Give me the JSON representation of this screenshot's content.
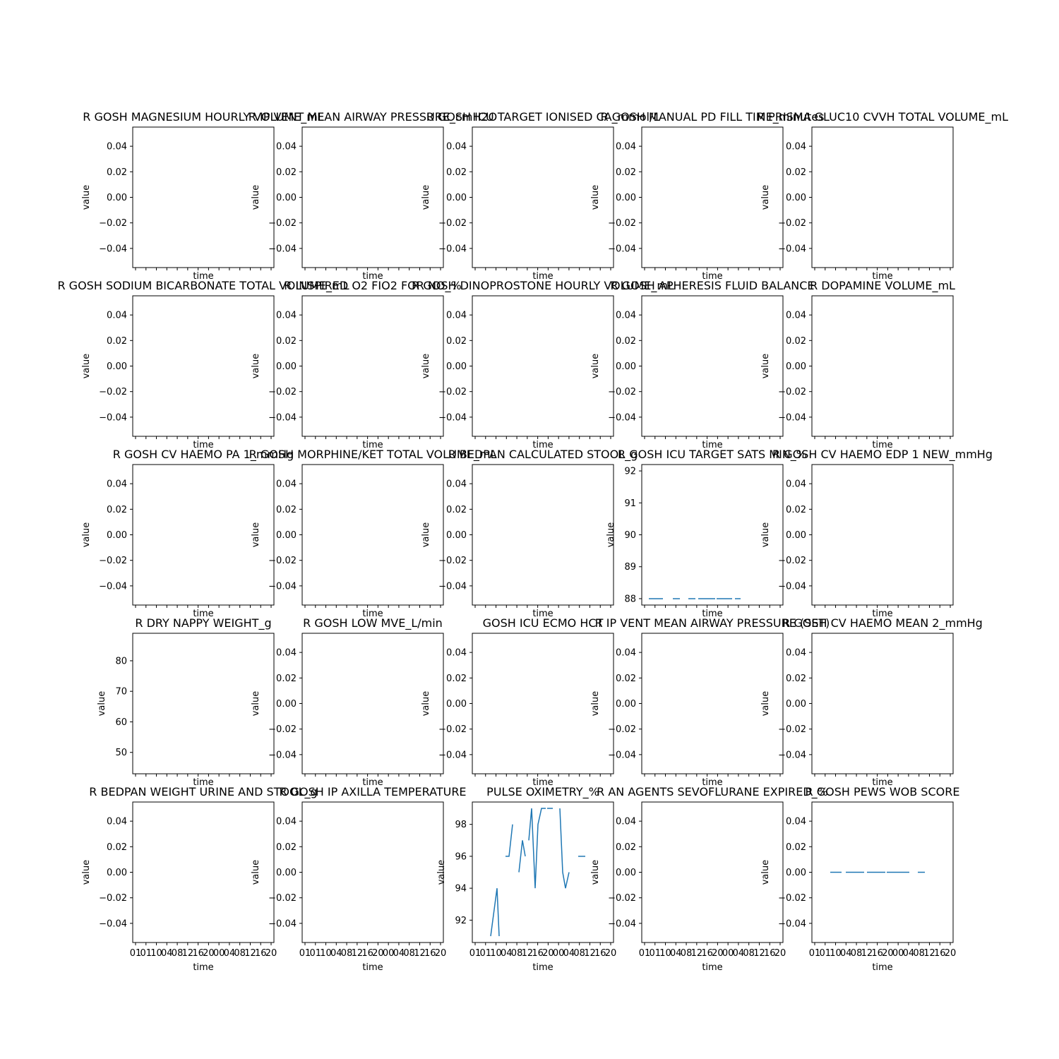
{
  "figure": {
    "line_color": "#1f77b4",
    "background": "#ffffff"
  },
  "chart_data": [
    {
      "type": "line",
      "title": "R GOSH MAGNESIUM HOURLY VOLUME_mL",
      "xlabel": "time",
      "ylabel": "value",
      "yticks": [
        "0.04",
        "0.02",
        "0.00",
        "−0.02",
        "−0.04"
      ],
      "ylim": [
        -0.055,
        0.055
      ],
      "xticks": [],
      "series": []
    },
    {
      "type": "line",
      "title": "R IP VENT MEAN AIRWAY PRESSURE_cmH2O",
      "xlabel": "time",
      "ylabel": "value",
      "yticks": [
        "0.04",
        "0.02",
        "0.00",
        "−0.02",
        "−0.04"
      ],
      "ylim": [
        -0.055,
        0.055
      ],
      "xticks": [],
      "series": []
    },
    {
      "type": "line",
      "title": "R GOSH ICU TARGET IONISED CA_mmol/L",
      "xlabel": "time",
      "ylabel": "value",
      "yticks": [
        "0.04",
        "0.02",
        "0.00",
        "−0.02",
        "−0.04"
      ],
      "ylim": [
        -0.055,
        0.055
      ],
      "xticks": [],
      "series": []
    },
    {
      "type": "line",
      "title": "R GOSH MANUAL PD FILL TIME_minutes",
      "xlabel": "time",
      "ylabel": "value",
      "yticks": [
        "0.04",
        "0.02",
        "0.00",
        "−0.02",
        "−0.04"
      ],
      "ylim": [
        -0.055,
        0.055
      ],
      "xticks": [],
      "series": []
    },
    {
      "type": "line",
      "title": "R PRISMA GLUC10 CVVH TOTAL VOLUME_mL",
      "xlabel": "time",
      "ylabel": "value",
      "yticks": [
        "0.04",
        "0.02",
        "0.00",
        "−0.02",
        "−0.04"
      ],
      "ylim": [
        -0.055,
        0.055
      ],
      "xticks": [],
      "series": []
    },
    {
      "type": "line",
      "title": "R GOSH SODIUM BICARBONATE TOTAL VOLUME_mL",
      "xlabel": "time",
      "ylabel": "value",
      "yticks": [
        "0.04",
        "0.02",
        "0.00",
        "−0.02",
        "−0.04"
      ],
      "ylim": [
        -0.055,
        0.055
      ],
      "xticks": [],
      "series": []
    },
    {
      "type": "line",
      "title": "R INSPIRED O2 FIO2 FOR NO_%",
      "xlabel": "time",
      "ylabel": "value",
      "yticks": [
        "0.04",
        "0.02",
        "0.00",
        "−0.02",
        "−0.04"
      ],
      "ylim": [
        -0.055,
        0.055
      ],
      "xticks": [],
      "series": []
    },
    {
      "type": "line",
      "title": "R GOSH DINOPROSTONE HOURLY VOLUME_mL",
      "xlabel": "time",
      "ylabel": "value",
      "yticks": [
        "0.04",
        "0.02",
        "0.00",
        "−0.02",
        "−0.04"
      ],
      "ylim": [
        -0.055,
        0.055
      ],
      "xticks": [],
      "series": []
    },
    {
      "type": "line",
      "title": "R GOSH APHERESIS FLUID BALANCE",
      "xlabel": "time",
      "ylabel": "value",
      "yticks": [
        "0.04",
        "0.02",
        "0.00",
        "−0.02",
        "−0.04"
      ],
      "ylim": [
        -0.055,
        0.055
      ],
      "xticks": [],
      "series": []
    },
    {
      "type": "line",
      "title": "R DOPAMINE VOLUME_mL",
      "xlabel": "time",
      "ylabel": "value",
      "yticks": [
        "0.04",
        "0.02",
        "0.00",
        "−0.02",
        "−0.04"
      ],
      "ylim": [
        -0.055,
        0.055
      ],
      "xticks": [],
      "series": []
    },
    {
      "type": "line",
      "title": "R GOSH CV HAEMO PA 1_mmHg",
      "xlabel": "time",
      "ylabel": "value",
      "yticks": [
        "0.04",
        "0.02",
        "0.00",
        "−0.02",
        "−0.04"
      ],
      "ylim": [
        -0.055,
        0.055
      ],
      "xticks": [],
      "series": []
    },
    {
      "type": "line",
      "title": "R GOSH MORPHINE/KET TOTAL VOLUME_mL",
      "xlabel": "time",
      "ylabel": "value",
      "yticks": [
        "0.04",
        "0.02",
        "0.00",
        "−0.02",
        "−0.04"
      ],
      "ylim": [
        -0.055,
        0.055
      ],
      "xticks": [],
      "series": []
    },
    {
      "type": "line",
      "title": "R BEDPAN CALCULATED STOOL_g",
      "xlabel": "time",
      "ylabel": "value",
      "yticks": [
        "0.04",
        "0.02",
        "0.00",
        "−0.02",
        "−0.04"
      ],
      "ylim": [
        -0.055,
        0.055
      ],
      "xticks": [],
      "series": []
    },
    {
      "type": "line",
      "title": "R GOSH ICU TARGET SATS MIN_%",
      "xlabel": "time",
      "ylabel": "value",
      "yticks": [
        "92",
        "91",
        "90",
        "89",
        "88"
      ],
      "ylim": [
        87.8,
        92.2
      ],
      "xticks": [],
      "series": [
        {
          "segments": [
            [
              [
                0.05,
                88
              ],
              [
                0.15,
                88
              ]
            ],
            [
              [
                0.22,
                88
              ],
              [
                0.27,
                88
              ]
            ],
            [
              [
                0.33,
                88
              ],
              [
                0.38,
                88
              ]
            ],
            [
              [
                0.4,
                88
              ],
              [
                0.52,
                88
              ]
            ],
            [
              [
                0.53,
                88
              ],
              [
                0.64,
                88
              ]
            ],
            [
              [
                0.66,
                88
              ],
              [
                0.7,
                88
              ]
            ]
          ]
        }
      ]
    },
    {
      "type": "line",
      "title": "R GOSH CV HAEMO EDP 1 NEW_mmHg",
      "xlabel": "time",
      "ylabel": "value",
      "yticks": [
        "0.04",
        "0.02",
        "0.00",
        "−0.02",
        "−0.04"
      ],
      "ylim": [
        -0.055,
        0.055
      ],
      "xticks": [],
      "series": []
    },
    {
      "type": "line",
      "title": "R DRY NAPPY WEIGHT_g",
      "xlabel": "time",
      "ylabel": "value",
      "yticks": [
        "80",
        "70",
        "60",
        "50"
      ],
      "ylim": [
        43,
        89
      ],
      "xticks": [],
      "series": []
    },
    {
      "type": "line",
      "title": "R GOSH LOW MVE_L/min",
      "xlabel": "time",
      "ylabel": "value",
      "yticks": [
        "0.04",
        "0.02",
        "0.00",
        "−0.02",
        "−0.04"
      ],
      "ylim": [
        -0.055,
        0.055
      ],
      "xticks": [],
      "series": []
    },
    {
      "type": "line",
      "title": "GOSH ICU ECMO HCT",
      "xlabel": "time",
      "ylabel": "value",
      "yticks": [
        "0.04",
        "0.02",
        "0.00",
        "−0.02",
        "−0.04"
      ],
      "ylim": [
        -0.055,
        0.055
      ],
      "xticks": [],
      "series": []
    },
    {
      "type": "line",
      "title": "R IP VENT MEAN AIRWAY PRESSURE (SET)",
      "xlabel": "time",
      "ylabel": "value",
      "yticks": [
        "0.04",
        "0.02",
        "0.00",
        "−0.02",
        "−0.04"
      ],
      "ylim": [
        -0.055,
        0.055
      ],
      "xticks": [],
      "series": []
    },
    {
      "type": "line",
      "title": "R GOSH CV HAEMO MEAN 2_mmHg",
      "xlabel": "time",
      "ylabel": "value",
      "yticks": [
        "0.04",
        "0.02",
        "0.00",
        "−0.02",
        "−0.04"
      ],
      "ylim": [
        -0.055,
        0.055
      ],
      "xticks": [],
      "series": []
    },
    {
      "type": "line",
      "title": "R BEDPAN WEIGHT URINE AND STOOL_g",
      "xlabel": "time",
      "ylabel": "value",
      "yticks": [
        "0.04",
        "0.02",
        "0.00",
        "−0.02",
        "−0.04"
      ],
      "ylim": [
        -0.055,
        0.055
      ],
      "xticks": [
        "01",
        "01",
        "10",
        "04",
        "08",
        "12",
        "16",
        "20",
        "00",
        "04",
        "08",
        "12",
        "16",
        "20"
      ],
      "series": []
    },
    {
      "type": "line",
      "title": "R GOSH IP AXILLA TEMPERATURE",
      "xlabel": "time",
      "ylabel": "value",
      "yticks": [
        "0.04",
        "0.02",
        "0.00",
        "−0.02",
        "−0.04"
      ],
      "ylim": [
        -0.055,
        0.055
      ],
      "xticks": [
        "01",
        "01",
        "10",
        "04",
        "08",
        "12",
        "16",
        "20",
        "00",
        "04",
        "08",
        "12",
        "16",
        "20"
      ],
      "series": []
    },
    {
      "type": "line",
      "title": "PULSE OXIMETRY_%",
      "xlabel": "time",
      "ylabel": "value",
      "yticks": [
        "98",
        "96",
        "94",
        "92"
      ],
      "ylim": [
        90.6,
        99.4
      ],
      "xticks": [
        "01",
        "01",
        "10",
        "04",
        "08",
        "12",
        "16",
        "20",
        "00",
        "04",
        "08",
        "12",
        "16",
        "20"
      ],
      "series": [
        {
          "segments": [
            [
              [
                0.13,
                91
              ],
              [
                0.16,
                93
              ],
              [
                0.175,
                94
              ],
              [
                0.19,
                91
              ]
            ],
            [
              [
                0.235,
                96
              ],
              [
                0.26,
                96
              ],
              [
                0.285,
                98
              ]
            ],
            [
              [
                0.33,
                95
              ],
              [
                0.355,
                97
              ],
              [
                0.375,
                96
              ]
            ],
            [
              [
                0.4,
                97
              ],
              [
                0.42,
                99
              ],
              [
                0.445,
                94
              ],
              [
                0.465,
                98
              ],
              [
                0.49,
                99
              ],
              [
                0.52,
                99
              ]
            ],
            [
              [
                0.53,
                99
              ],
              [
                0.57,
                99
              ]
            ],
            [
              [
                0.62,
                99
              ],
              [
                0.64,
                95
              ],
              [
                0.66,
                94
              ],
              [
                0.685,
                95
              ]
            ],
            [
              [
                0.75,
                96
              ],
              [
                0.8,
                96
              ]
            ]
          ]
        }
      ]
    },
    {
      "type": "line",
      "title": "R AN AGENTS SEVOFLURANE EXPIRED_%",
      "xlabel": "time",
      "ylabel": "value",
      "yticks": [
        "0.04",
        "0.02",
        "0.00",
        "−0.02",
        "−0.04"
      ],
      "ylim": [
        -0.055,
        0.055
      ],
      "xticks": [
        "01",
        "01",
        "10",
        "04",
        "08",
        "12",
        "16",
        "20",
        "00",
        "04",
        "08",
        "12",
        "16",
        "20"
      ],
      "series": []
    },
    {
      "type": "line",
      "title": "R GOSH PEWS WOB SCORE",
      "xlabel": "time",
      "ylabel": "value",
      "yticks": [
        "0.04",
        "0.02",
        "0.00",
        "−0.02",
        "−0.04"
      ],
      "ylim": [
        -0.055,
        0.055
      ],
      "xticks": [
        "01",
        "01",
        "10",
        "04",
        "08",
        "12",
        "16",
        "20",
        "00",
        "04",
        "08",
        "12",
        "16",
        "20"
      ],
      "series": [
        {
          "segments": [
            [
              [
                0.13,
                0
              ],
              [
                0.21,
                0
              ]
            ],
            [
              [
                0.24,
                0
              ],
              [
                0.37,
                0
              ]
            ],
            [
              [
                0.39,
                0
              ],
              [
                0.52,
                0
              ]
            ],
            [
              [
                0.53,
                0
              ],
              [
                0.69,
                0
              ]
            ],
            [
              [
                0.75,
                0
              ],
              [
                0.8,
                0
              ]
            ]
          ]
        }
      ]
    }
  ]
}
